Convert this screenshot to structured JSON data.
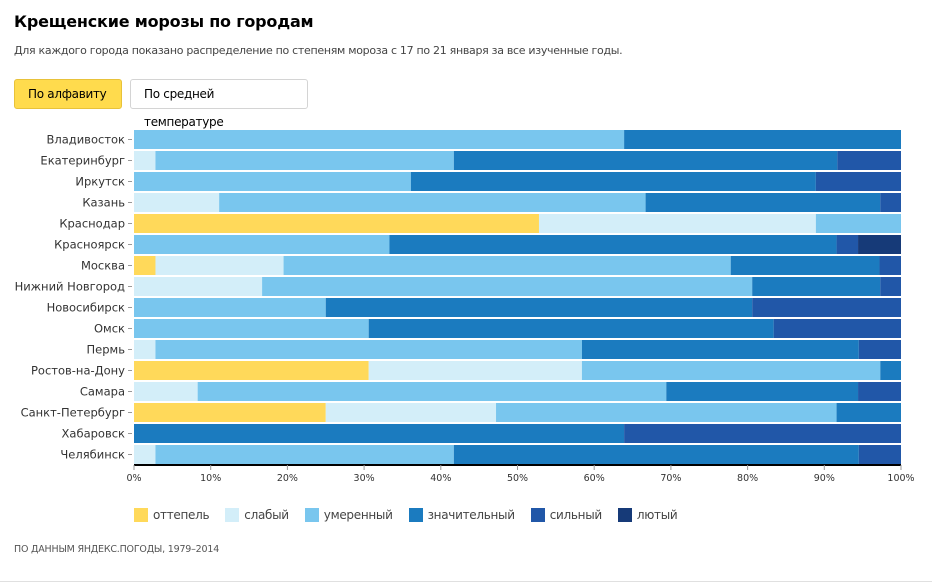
{
  "header": {
    "title": "Крещенские морозы по городам",
    "subtitle": "Для каждого города показано распределение по степеням мороза с 17 по 21 января за все изученные годы."
  },
  "sort_buttons": {
    "alphabet": "По алфавиту",
    "avg_temp": "По средней температуре",
    "active": "alphabet",
    "active_color": "#ffdb4d"
  },
  "footer": {
    "source": "ПО ДАННЫМ ЯНДЕКС.ПОГОДЫ, 1979–2014"
  },
  "chart_data": {
    "type": "bar",
    "orientation": "horizontal",
    "stacked": true,
    "normalized": true,
    "title": "Крещенские морозы по городам",
    "xlabel": "",
    "ylabel": "",
    "xlim": [
      0,
      100
    ],
    "x_ticks": [
      "0%",
      "10%",
      "20%",
      "30%",
      "40%",
      "50%",
      "60%",
      "70%",
      "80%",
      "90%",
      "100%"
    ],
    "legend_position": "bottom-left",
    "grid": false,
    "categories": [
      "Владивосток",
      "Екатеринбург",
      "Иркутск",
      "Казань",
      "Краснодар",
      "Красноярск",
      "Москва",
      "Нижний Новгород",
      "Новосибирск",
      "Омск",
      "Пермь",
      "Ростов-на-Дону",
      "Самара",
      "Санкт-Петербург",
      "Хабаровск",
      "Челябинск"
    ],
    "series": [
      {
        "name": "оттепель",
        "color": "#ffd95a",
        "values": [
          0,
          0,
          0,
          0,
          52.8,
          0,
          2.8,
          0,
          0,
          0,
          0,
          30.6,
          0,
          25.0,
          0,
          0
        ]
      },
      {
        "name": "слабый",
        "color": "#d3eef9",
        "values": [
          0,
          2.8,
          0,
          11.1,
          36.1,
          0,
          16.7,
          16.7,
          0,
          0,
          2.8,
          27.8,
          8.3,
          22.2,
          0,
          2.8
        ]
      },
      {
        "name": "умеренный",
        "color": "#79c6ee",
        "values": [
          63.9,
          38.9,
          36.1,
          55.6,
          11.1,
          33.3,
          58.3,
          63.9,
          25.0,
          30.6,
          55.6,
          38.9,
          61.1,
          44.4,
          0,
          38.9
        ]
      },
      {
        "name": "значительный",
        "color": "#1b7bbf",
        "values": [
          36.1,
          50.0,
          52.8,
          30.6,
          0,
          58.3,
          19.4,
          16.7,
          55.6,
          52.8,
          36.1,
          2.7,
          25.0,
          8.4,
          63.9,
          52.8
        ]
      },
      {
        "name": "сильный",
        "color": "#2157a8",
        "values": [
          0,
          8.3,
          11.1,
          2.7,
          0,
          2.8,
          2.8,
          2.7,
          19.4,
          16.6,
          5.5,
          0,
          5.6,
          0,
          36.1,
          5.5
        ]
      },
      {
        "name": "лютый",
        "color": "#163a78",
        "values": [
          0,
          0,
          0,
          0,
          0,
          5.6,
          0,
          0,
          0,
          0,
          0,
          0,
          0,
          0,
          0,
          0
        ]
      }
    ]
  }
}
